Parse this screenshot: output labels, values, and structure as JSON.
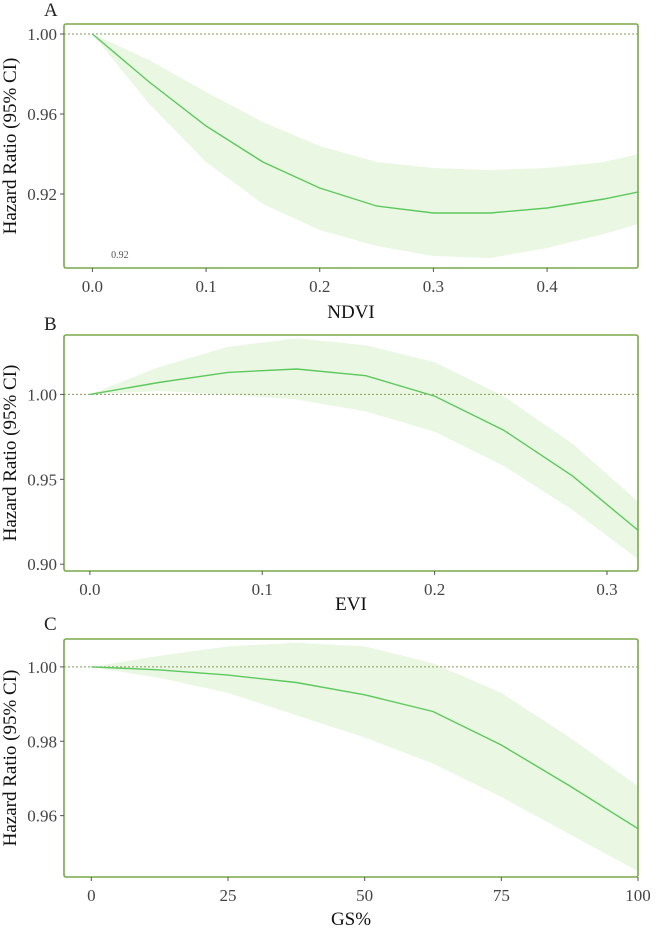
{
  "chart_data": [
    {
      "type": "line",
      "panel": "A",
      "xlabel": "NDVI",
      "ylabel": "Hazard Ratio (95% CI)",
      "xlim": [
        -0.025,
        0.48
      ],
      "ylim": [
        0.883,
        1.005
      ],
      "xticks": [
        0.0,
        0.1,
        0.2,
        0.3,
        0.4
      ],
      "xtick_labels": [
        "0.0",
        "0.1",
        "0.2",
        "0.3",
        "0.4"
      ],
      "yticks": [
        0.92,
        0.96,
        1.0
      ],
      "ytick_labels": [
        "0.92",
        "0.96",
        "1.00"
      ],
      "reference_y": 1.0,
      "annotation": {
        "text": "0.92",
        "x": 0.02,
        "y": 0.888
      },
      "series": [
        {
          "name": "HR",
          "x": [
            0,
            0.05,
            0.1,
            0.15,
            0.2,
            0.25,
            0.3,
            0.35,
            0.4,
            0.45,
            0.48
          ],
          "values": [
            1.0,
            0.976,
            0.954,
            0.936,
            0.923,
            0.914,
            0.9105,
            0.9105,
            0.913,
            0.9175,
            0.921
          ]
        },
        {
          "name": "Lower 95% CI",
          "x": [
            0,
            0.05,
            0.1,
            0.15,
            0.2,
            0.25,
            0.3,
            0.35,
            0.4,
            0.45,
            0.48
          ],
          "values": [
            1.0,
            0.965,
            0.936,
            0.915,
            0.902,
            0.894,
            0.889,
            0.888,
            0.893,
            0.9,
            0.905
          ]
        },
        {
          "name": "Upper 95% CI",
          "x": [
            0,
            0.05,
            0.1,
            0.15,
            0.2,
            0.25,
            0.3,
            0.35,
            0.4,
            0.45,
            0.48
          ],
          "values": [
            1.0,
            0.987,
            0.971,
            0.956,
            0.944,
            0.936,
            0.933,
            0.932,
            0.933,
            0.936,
            0.94
          ]
        }
      ]
    },
    {
      "type": "line",
      "panel": "B",
      "xlabel": "EVI",
      "ylabel": "Hazard Ratio (95% CI)",
      "xlim": [
        -0.015,
        0.318
      ],
      "ylim": [
        0.896,
        1.035
      ],
      "xticks": [
        0.0,
        0.1,
        0.2,
        0.3
      ],
      "xtick_labels": [
        "0.0",
        "0.1",
        "0.2",
        "0.3"
      ],
      "yticks": [
        0.9,
        0.95,
        1.0
      ],
      "ytick_labels": [
        "0.90",
        "0.95",
        "1.00"
      ],
      "reference_y": 1.0,
      "series": [
        {
          "name": "HR",
          "x": [
            0,
            0.04,
            0.08,
            0.12,
            0.16,
            0.2,
            0.24,
            0.28,
            0.318
          ],
          "values": [
            1.0,
            1.007,
            1.013,
            1.015,
            1.011,
            0.999,
            0.979,
            0.952,
            0.92
          ]
        },
        {
          "name": "Lower 95% CI",
          "x": [
            0,
            0.04,
            0.08,
            0.12,
            0.16,
            0.2,
            0.24,
            0.28,
            0.318
          ],
          "values": [
            1.0,
            1.002,
            1.0,
            0.997,
            0.99,
            0.978,
            0.958,
            0.932,
            0.903
          ]
        },
        {
          "name": "Upper 95% CI",
          "x": [
            0,
            0.04,
            0.08,
            0.12,
            0.16,
            0.2,
            0.24,
            0.28,
            0.318
          ],
          "values": [
            1.0,
            1.016,
            1.028,
            1.033,
            1.029,
            1.019,
            0.999,
            0.971,
            0.937
          ]
        }
      ]
    },
    {
      "type": "line",
      "panel": "C",
      "xlabel": "GS%",
      "ylabel": "Hazard Ratio (95% CI)",
      "xlim": [
        -5,
        100
      ],
      "ylim": [
        0.9435,
        1.0075
      ],
      "xticks": [
        0,
        25,
        50,
        75,
        100
      ],
      "xtick_labels": [
        "0",
        "25",
        "50",
        "75",
        "100"
      ],
      "yticks": [
        0.96,
        0.98,
        1.0
      ],
      "ytick_labels": [
        "0.96",
        "0.98",
        "1.00"
      ],
      "reference_y": 1.0,
      "series": [
        {
          "name": "HR",
          "x": [
            0,
            12.5,
            25,
            37.5,
            50,
            62.5,
            75,
            87.5,
            100
          ],
          "values": [
            1.0,
            0.9992,
            0.9978,
            0.9958,
            0.9925,
            0.988,
            0.979,
            0.968,
            0.9565
          ]
        },
        {
          "name": "Lower 95% CI",
          "x": [
            0,
            12.5,
            25,
            37.5,
            50,
            62.5,
            75,
            87.5,
            100
          ],
          "values": [
            1.0,
            0.997,
            0.993,
            0.987,
            0.981,
            0.974,
            0.965,
            0.955,
            0.945
          ]
        },
        {
          "name": "Upper 95% CI",
          "x": [
            0,
            12.5,
            25,
            37.5,
            50,
            62.5,
            75,
            87.5,
            100
          ],
          "values": [
            1.0,
            1.003,
            1.0055,
            1.0065,
            1.0055,
            1.001,
            0.993,
            0.981,
            0.968
          ]
        }
      ]
    }
  ],
  "colors": {
    "line": "#5cc95c",
    "band": "#eaf7e3",
    "frame": "#7aa84a",
    "reference": "#8a9a5b"
  }
}
